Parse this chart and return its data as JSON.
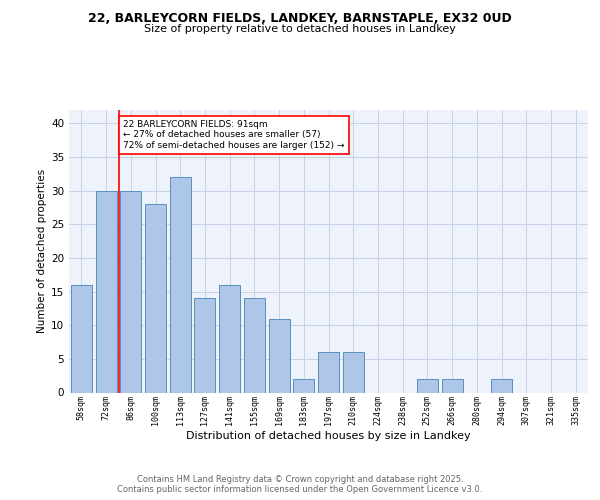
{
  "title1": "22, BARLEYCORN FIELDS, LANDKEY, BARNSTAPLE, EX32 0UD",
  "title2": "Size of property relative to detached houses in Landkey",
  "xlabel": "Distribution of detached houses by size in Landkey",
  "ylabel": "Number of detached properties",
  "categories": [
    "58sqm",
    "72sqm",
    "86sqm",
    "100sqm",
    "113sqm",
    "127sqm",
    "141sqm",
    "155sqm",
    "169sqm",
    "183sqm",
    "197sqm",
    "210sqm",
    "224sqm",
    "238sqm",
    "252sqm",
    "266sqm",
    "280sqm",
    "294sqm",
    "307sqm",
    "321sqm",
    "335sqm"
  ],
  "values": [
    16,
    30,
    30,
    28,
    32,
    14,
    16,
    14,
    11,
    2,
    6,
    6,
    0,
    0,
    2,
    2,
    0,
    2,
    0,
    0,
    0
  ],
  "bar_color": "#aec6e8",
  "bar_edge_color": "#5a8fc0",
  "vline_color": "red",
  "annotation_text": "22 BARLEYCORN FIELDS: 91sqm\n← 27% of detached houses are smaller (57)\n72% of semi-detached houses are larger (152) →",
  "annotation_box_color": "white",
  "annotation_box_edge": "red",
  "ylim": [
    0,
    42
  ],
  "yticks": [
    0,
    5,
    10,
    15,
    20,
    25,
    30,
    35,
    40
  ],
  "footer_text": "Contains HM Land Registry data © Crown copyright and database right 2025.\nContains public sector information licensed under the Open Government Licence v3.0.",
  "bg_color": "#eef2fa",
  "grid_color": "#c8d0e8"
}
